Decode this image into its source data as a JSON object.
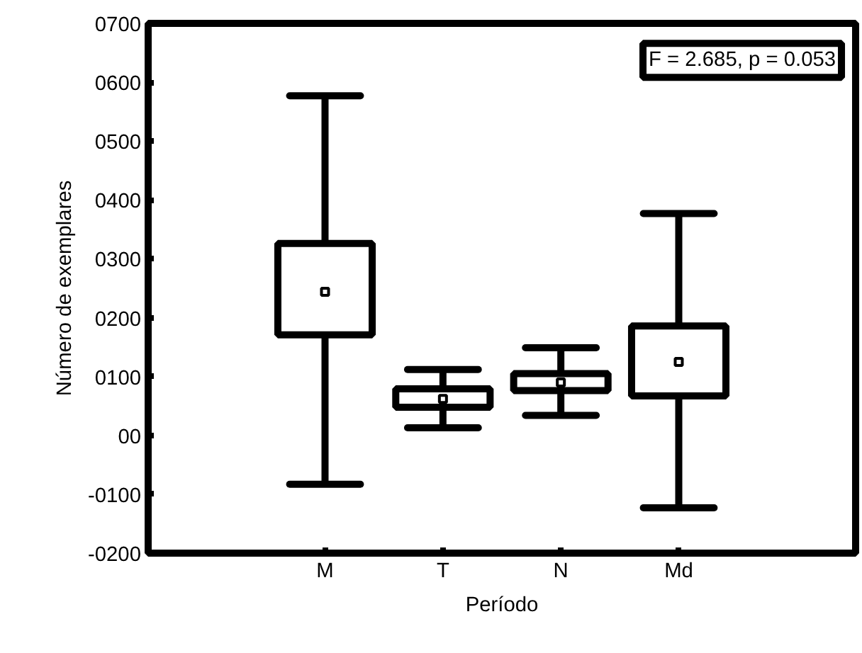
{
  "chart_data": {
    "type": "box",
    "xlabel": "Período",
    "ylabel": "Número de exemplares",
    "categories": [
      "M",
      "T",
      "N",
      "Md"
    ],
    "boxes": [
      {
        "low": -83,
        "q1": 171,
        "median": 244,
        "q3": 326,
        "high": 577
      },
      {
        "low": 13,
        "q1": 48,
        "median": 62,
        "q3": 79,
        "high": 112
      },
      {
        "low": 34,
        "q1": 76,
        "median": 90,
        "q3": 105,
        "high": 149
      },
      {
        "low": -123,
        "q1": 67,
        "median": 125,
        "q3": 186,
        "high": 377
      }
    ],
    "ylim": [
      -200,
      700
    ],
    "yticks": [
      {
        "value": -200,
        "label": "-0200"
      },
      {
        "value": -100,
        "label": "-0100"
      },
      {
        "value": 0,
        "label": "00"
      },
      {
        "value": 100,
        "label": "0100"
      },
      {
        "value": 200,
        "label": "0200"
      },
      {
        "value": 300,
        "label": "0300"
      },
      {
        "value": 400,
        "label": "0400"
      },
      {
        "value": 500,
        "label": "0500"
      },
      {
        "value": 600,
        "label": "0600"
      },
      {
        "value": 700,
        "label": "0700"
      }
    ],
    "grid": false,
    "annotations": [
      "F = 2.685, p = 0.053"
    ]
  }
}
